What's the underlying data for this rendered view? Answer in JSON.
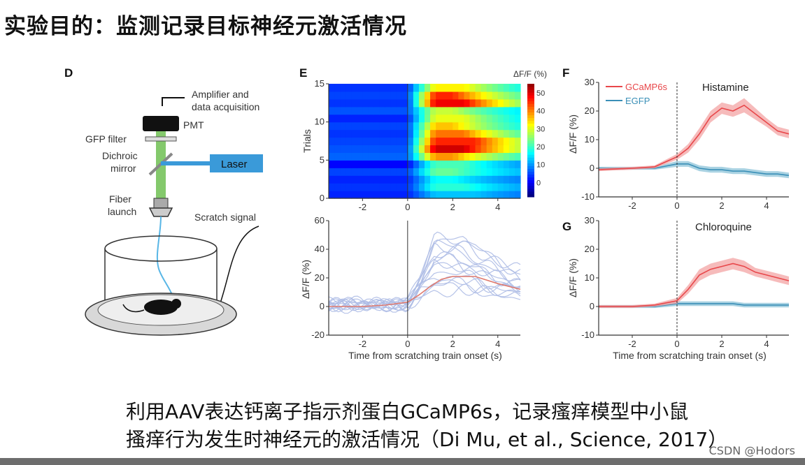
{
  "slide": {
    "title": "实验目的：监测记录目标神经元激活情况",
    "caption_line1": "利用AAV表达钙离子指示剂蛋白GCaMP6s，记录瘙痒模型中小鼠",
    "caption_line2": "搔痒行为发生时神经元的激活情况（Di Mu, et al., Science, 2017）",
    "watermark": "CSDN @Hodors"
  },
  "panel_d": {
    "letter": "D",
    "amplifier": "Amplifier and",
    "acquisition": "data acquisition",
    "pmt": "PMT",
    "gfp_filter": "GFP filter",
    "dichroic1": "Dichroic",
    "dichroic2": "mirror",
    "laser": "Laser",
    "fiber1": "Fiber",
    "fiber2": "launch",
    "scratch": "Scratch signal",
    "colors": {
      "green": "#6fbf52",
      "laser": "#3a9ad9",
      "fiber": "#58b6e6"
    }
  },
  "chart_data": [
    {
      "id": "E-heatmap",
      "type": "heatmap",
      "panel_label": "E",
      "ylabel": "Trials",
      "xlabel": "",
      "colorbar_label": "ΔF/F (%)",
      "colorbar_ticks": [
        0,
        10,
        20,
        30,
        40,
        50
      ],
      "colorbar_range": [
        -8,
        55
      ],
      "xlim": [
        -3.5,
        5
      ],
      "ylim": [
        0,
        15
      ],
      "xticks": [
        -2,
        0,
        2,
        4
      ],
      "yticks": [
        0,
        5,
        10,
        15
      ],
      "n_trials": 15,
      "onset_line_x": 0,
      "row_profiles": [
        {
          "trial": 1,
          "pre": 2,
          "peak": 12,
          "t_peak": 3.0
        },
        {
          "trial": 2,
          "pre": 3,
          "peak": 18,
          "t_peak": 2.5
        },
        {
          "trial": 3,
          "pre": 2,
          "peak": 16,
          "t_peak": 2.0
        },
        {
          "trial": 4,
          "pre": 4,
          "peak": 22,
          "t_peak": 2.0
        },
        {
          "trial": 5,
          "pre": 0,
          "peak": 20,
          "t_peak": 2.5
        },
        {
          "trial": 6,
          "pre": 6,
          "peak": 38,
          "t_peak": 2.0
        },
        {
          "trial": 7,
          "pre": 5,
          "peak": 50,
          "t_peak": 2.5
        },
        {
          "trial": 8,
          "pre": 4,
          "peak": 45,
          "t_peak": 3.0
        },
        {
          "trial": 9,
          "pre": 3,
          "peak": 40,
          "t_peak": 2.5
        },
        {
          "trial": 10,
          "pre": 4,
          "peak": 35,
          "t_peak": 2.0
        },
        {
          "trial": 11,
          "pre": 2,
          "peak": 30,
          "t_peak": 2.5
        },
        {
          "trial": 12,
          "pre": 5,
          "peak": 28,
          "t_peak": 2.0
        },
        {
          "trial": 13,
          "pre": 3,
          "peak": 48,
          "t_peak": 2.5
        },
        {
          "trial": 14,
          "pre": 4,
          "peak": 45,
          "t_peak": 2.0
        },
        {
          "trial": 15,
          "pre": 3,
          "peak": 32,
          "t_peak": 2.5
        }
      ]
    },
    {
      "id": "E-traces",
      "type": "line",
      "ylabel": "ΔF/F (%)",
      "xlabel": "Time from scratching train onset (s)",
      "xlim": [
        -3.5,
        5
      ],
      "ylim": [
        -20,
        60
      ],
      "xticks": [
        -2,
        0,
        2,
        4
      ],
      "yticks": [
        -20,
        0,
        20,
        40,
        60
      ],
      "trial_peaks": [
        12,
        18,
        16,
        22,
        20,
        38,
        50,
        45,
        40,
        35,
        30,
        28,
        48,
        45,
        32
      ],
      "mean_series": {
        "name": "mean",
        "x": [
          -3.5,
          -2,
          -1,
          0,
          0.5,
          1,
          1.5,
          2,
          3,
          4,
          5
        ],
        "y": [
          0,
          0,
          1,
          3,
          8,
          14,
          19,
          21,
          21,
          16,
          12
        ],
        "color": "#e07a6e"
      },
      "trace_color": "#aebde6"
    },
    {
      "id": "F",
      "type": "line",
      "panel_label": "F",
      "title": "Histamine",
      "ylabel": "ΔF/F (%)",
      "xlabel": "",
      "xlim": [
        -3.5,
        5
      ],
      "ylim": [
        -10,
        30
      ],
      "xticks": [
        -2,
        0,
        2,
        4
      ],
      "yticks": [
        -10,
        0,
        10,
        20,
        30
      ],
      "legend": {
        "placement": "top-left",
        "entries": [
          "GCaMP6s",
          "EGFP"
        ]
      },
      "series": [
        {
          "name": "GCaMP6s",
          "color": "#e8474a",
          "band_color": "#f3a4a4",
          "x": [
            -3.5,
            -2,
            -1,
            0,
            0.5,
            1,
            1.5,
            2,
            2.5,
            3,
            3.5,
            4,
            4.5,
            5
          ],
          "y": [
            -0.5,
            0,
            0.5,
            4,
            7,
            12,
            18,
            21,
            20,
            22,
            19,
            16,
            13,
            12
          ],
          "err": [
            0.5,
            0.5,
            0.5,
            1,
            1.5,
            2,
            2,
            2,
            2,
            2.5,
            2,
            1.5,
            1.5,
            1.5
          ]
        },
        {
          "name": "EGFP",
          "color": "#3a8fb7",
          "band_color": "#8cc3d8",
          "x": [
            -3.5,
            -2,
            -1,
            0,
            0.5,
            1,
            1.5,
            2,
            2.5,
            3,
            3.5,
            4,
            4.5,
            5
          ],
          "y": [
            0,
            0,
            0,
            1.5,
            1.5,
            0,
            -0.5,
            -0.5,
            -1,
            -1,
            -1.5,
            -2,
            -2,
            -2.5
          ],
          "err": [
            0.5,
            0.5,
            0.5,
            1,
            1,
            1,
            1,
            1,
            1,
            1,
            1,
            1,
            1,
            1
          ]
        }
      ]
    },
    {
      "id": "G",
      "type": "line",
      "panel_label": "G",
      "title": "Chloroquine",
      "ylabel": "ΔF/F (%)",
      "xlabel": "Time from scratching train onset (s)",
      "xlim": [
        -3.5,
        5
      ],
      "ylim": [
        -10,
        30
      ],
      "xticks": [
        -2,
        0,
        2,
        4
      ],
      "yticks": [
        -10,
        0,
        10,
        20,
        30
      ],
      "series": [
        {
          "name": "GCaMP6s",
          "color": "#e8474a",
          "band_color": "#f3a4a4",
          "x": [
            -3.5,
            -2,
            -1,
            0,
            0.5,
            1,
            1.5,
            2,
            2.5,
            3,
            3.5,
            4,
            4.5,
            5
          ],
          "y": [
            0,
            0,
            0.5,
            2,
            6,
            11,
            13,
            14,
            15,
            14,
            12,
            11,
            10,
            9
          ],
          "err": [
            0.5,
            0.5,
            0.5,
            1,
            1.5,
            2,
            2,
            2,
            2,
            2,
            1.5,
            1.5,
            1.5,
            1.5
          ]
        },
        {
          "name": "EGFP",
          "color": "#3a8fb7",
          "band_color": "#8cc3d8",
          "x": [
            -3.5,
            -2,
            -1,
            0,
            0.5,
            1,
            1.5,
            2,
            2.5,
            3,
            3.5,
            4,
            4.5,
            5
          ],
          "y": [
            0,
            0,
            0,
            1,
            1,
            1,
            1,
            1,
            1,
            0.5,
            0.5,
            0.5,
            0.5,
            0.5
          ],
          "err": [
            0.5,
            0.5,
            0.5,
            0.8,
            0.8,
            0.8,
            0.8,
            0.8,
            0.8,
            0.8,
            0.8,
            0.8,
            0.8,
            0.8
          ]
        }
      ]
    }
  ]
}
